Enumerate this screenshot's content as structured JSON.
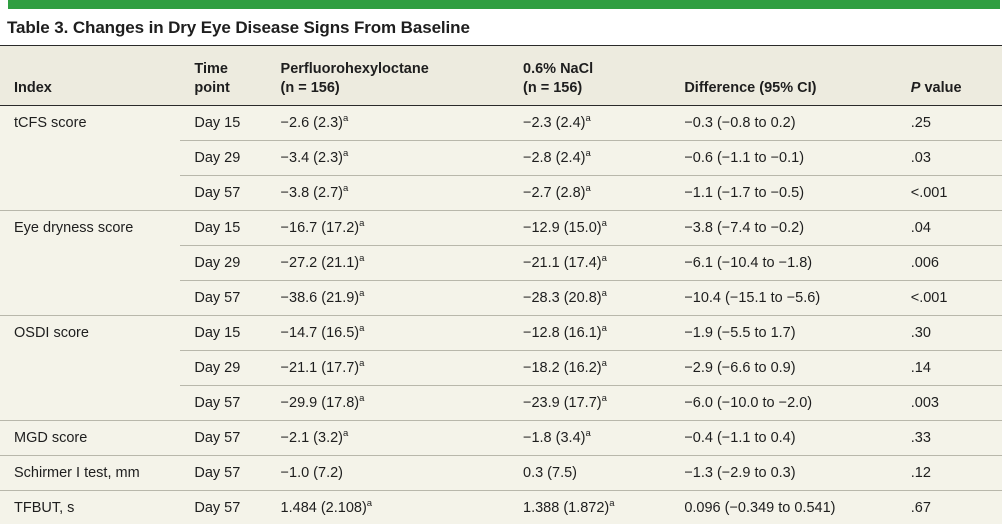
{
  "title": "Table 3. Changes in Dry Eye Disease Signs From Baseline",
  "colors": {
    "accent_bar_green": "#2f9e41",
    "header_background": "#edebdf",
    "body_background": "#f4f3e9",
    "dark_rule": "#2a2a2a",
    "row_divider": "#b8b7ab",
    "text": "#1e1e1e"
  },
  "header": {
    "index": "Index",
    "time_line1": "Time",
    "time_line2": "point",
    "pfh_line1": "Perfluorohexyloctane",
    "pfh_line2": "(n = 156)",
    "nacl_line1": "0.6% NaCl",
    "nacl_line2": "(n = 156)",
    "difference": "Difference (95% CI)",
    "p_italic": "P",
    "p_rest": " value"
  },
  "table": {
    "rows": [
      {
        "index": "tCFS score",
        "time": "Day 15",
        "pfh": "−2.6 (2.3)",
        "pfh_sup": "a",
        "nacl": "−2.3 (2.4)",
        "nacl_sup": "a",
        "diff": "−0.3 (−0.8 to 0.2)",
        "p": ".25"
      },
      {
        "index": "",
        "time": "Day 29",
        "pfh": "−3.4 (2.3)",
        "pfh_sup": "a",
        "nacl": "−2.8 (2.4)",
        "nacl_sup": "a",
        "diff": "−0.6 (−1.1 to −0.1)",
        "p": ".03"
      },
      {
        "index": "",
        "time": "Day 57",
        "pfh": "−3.8 (2.7)",
        "pfh_sup": "a",
        "nacl": "−2.7 (2.8)",
        "nacl_sup": "a",
        "diff": "−1.1 (−1.7 to −0.5)",
        "p": "<.001"
      },
      {
        "index": "Eye dryness score",
        "time": "Day 15",
        "pfh": "−16.7 (17.2)",
        "pfh_sup": "a",
        "nacl": "−12.9 (15.0)",
        "nacl_sup": "a",
        "diff": "−3.8 (−7.4 to −0.2)",
        "p": ".04"
      },
      {
        "index": "",
        "time": "Day 29",
        "pfh": "−27.2 (21.1)",
        "pfh_sup": "a",
        "nacl": "−21.1 (17.4)",
        "nacl_sup": "a",
        "diff": "−6.1 (−10.4 to −1.8)",
        "p": ".006"
      },
      {
        "index": "",
        "time": "Day 57",
        "pfh": "−38.6 (21.9)",
        "pfh_sup": "a",
        "nacl": "−28.3 (20.8)",
        "nacl_sup": "a",
        "diff": "−10.4 (−15.1 to −5.6)",
        "p": "<.001"
      },
      {
        "index": "OSDI score",
        "time": "Day 15",
        "pfh": "−14.7 (16.5)",
        "pfh_sup": "a",
        "nacl": "−12.8 (16.1)",
        "nacl_sup": "a",
        "diff": "−1.9 (−5.5 to 1.7)",
        "p": ".30"
      },
      {
        "index": "",
        "time": "Day 29",
        "pfh": "−21.1 (17.7)",
        "pfh_sup": "a",
        "nacl": "−18.2 (16.2)",
        "nacl_sup": "a",
        "diff": "−2.9 (−6.6 to 0.9)",
        "p": ".14"
      },
      {
        "index": "",
        "time": "Day 57",
        "pfh": "−29.9 (17.8)",
        "pfh_sup": "a",
        "nacl": "−23.9 (17.7)",
        "nacl_sup": "a",
        "diff": "−6.0 (−10.0 to −2.0)",
        "p": ".003"
      },
      {
        "index": "MGD score",
        "time": "Day 57",
        "pfh": "−2.1 (3.2)",
        "pfh_sup": "a",
        "nacl": "−1.8 (3.4)",
        "nacl_sup": "a",
        "diff": "−0.4 (−1.1 to 0.4)",
        "p": ".33"
      },
      {
        "index": "Schirmer I test, mm",
        "time": "Day 57",
        "pfh": "−1.0 (7.2)",
        "nacl": "0.3 (7.5)",
        "diff": "−1.3 (−2.9 to 0.3)",
        "p": ".12"
      },
      {
        "index": "TFBUT, s",
        "time": "Day 57",
        "pfh": "1.484 (2.108)",
        "pfh_sup": "a",
        "nacl": "1.388 (1.872)",
        "nacl_sup": "a",
        "diff": "0.096 (−0.349 to 0.541)",
        "p": ".67"
      }
    ]
  }
}
